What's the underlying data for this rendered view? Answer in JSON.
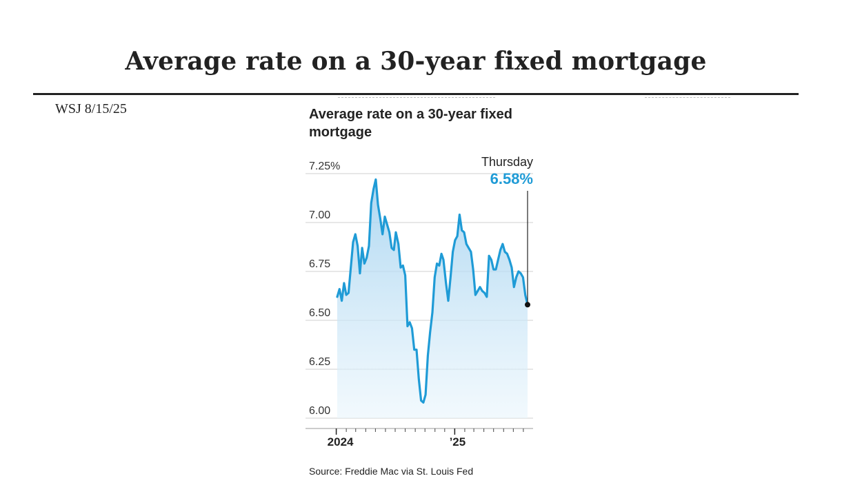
{
  "slide": {
    "title": "Average rate on a 30-year fixed mortgage",
    "source_note": "WSJ  8/15/25"
  },
  "chart_data": {
    "type": "area",
    "title": "Average rate on a 30-year fixed mortgage",
    "xlabel": "",
    "ylabel": "",
    "x_ticks": [
      "2024",
      "’25"
    ],
    "y_ticks": [
      "7.25%",
      "7.00",
      "6.75",
      "6.50",
      "6.25",
      "6.00"
    ],
    "y_tick_values": [
      7.25,
      7.0,
      6.75,
      6.5,
      6.25,
      6.0
    ],
    "ylim": [
      6.0,
      7.25
    ],
    "xlim": [
      "2024-01-04",
      "2025-08-14"
    ],
    "grid": true,
    "line_color": "#1f9bd6",
    "fill_color": "#bfe0f5",
    "annotation": {
      "label": "Thursday",
      "value_text": "6.58%",
      "date": "2025-08-14",
      "value": 6.58
    },
    "source": "Source: Freddie Mac via St. Louis Fed",
    "series": [
      {
        "x": [
          "2024-01-04",
          "2024-01-11",
          "2024-01-18",
          "2024-01-25",
          "2024-02-01",
          "2024-02-08",
          "2024-02-15",
          "2024-02-22",
          "2024-02-29",
          "2024-03-07",
          "2024-03-14",
          "2024-03-21",
          "2024-03-28",
          "2024-04-04",
          "2024-04-11",
          "2024-04-18",
          "2024-04-25",
          "2024-05-02",
          "2024-05-09",
          "2024-05-16",
          "2024-05-23",
          "2024-05-30",
          "2024-06-06",
          "2024-06-13",
          "2024-06-20",
          "2024-06-27",
          "2024-07-03",
          "2024-07-11",
          "2024-07-18",
          "2024-07-25",
          "2024-08-01",
          "2024-08-08",
          "2024-08-15",
          "2024-08-22",
          "2024-08-29",
          "2024-09-05",
          "2024-09-12",
          "2024-09-19",
          "2024-09-26",
          "2024-10-03",
          "2024-10-10",
          "2024-10-17",
          "2024-10-24",
          "2024-10-31",
          "2024-11-07",
          "2024-11-14",
          "2024-11-21",
          "2024-11-27",
          "2024-12-05",
          "2024-12-12",
          "2024-12-19",
          "2024-12-26",
          "2025-01-02",
          "2025-01-09",
          "2025-01-16",
          "2025-01-23",
          "2025-01-30",
          "2025-02-06",
          "2025-02-13",
          "2025-02-20",
          "2025-02-27",
          "2025-03-06",
          "2025-03-13",
          "2025-03-20",
          "2025-03-27",
          "2025-04-03",
          "2025-04-10",
          "2025-04-17",
          "2025-04-24",
          "2025-05-01",
          "2025-05-08",
          "2025-05-15",
          "2025-05-22",
          "2025-05-29",
          "2025-06-05",
          "2025-06-12",
          "2025-06-19",
          "2025-06-26",
          "2025-07-03",
          "2025-07-10",
          "2025-07-17",
          "2025-07-24",
          "2025-07-31",
          "2025-08-07",
          "2025-08-14"
        ],
        "values": [
          6.62,
          6.66,
          6.6,
          6.69,
          6.63,
          6.64,
          6.77,
          6.9,
          6.94,
          6.88,
          6.74,
          6.87,
          6.79,
          6.82,
          6.88,
          7.1,
          7.17,
          7.22,
          7.09,
          7.02,
          6.94,
          7.03,
          6.99,
          6.95,
          6.87,
          6.86,
          6.95,
          6.89,
          6.77,
          6.78,
          6.73,
          6.47,
          6.49,
          6.46,
          6.35,
          6.35,
          6.2,
          6.09,
          6.08,
          6.12,
          6.32,
          6.44,
          6.54,
          6.72,
          6.79,
          6.78,
          6.84,
          6.81,
          6.69,
          6.6,
          6.72,
          6.85,
          6.91,
          6.93,
          7.04,
          6.96,
          6.95,
          6.89,
          6.87,
          6.85,
          6.76,
          6.63,
          6.65,
          6.67,
          6.65,
          6.64,
          6.62,
          6.83,
          6.81,
          6.76,
          6.76,
          6.81,
          6.86,
          6.89,
          6.85,
          6.84,
          6.81,
          6.77,
          6.67,
          6.72,
          6.75,
          6.74,
          6.72,
          6.63,
          6.58
        ]
      }
    ]
  }
}
